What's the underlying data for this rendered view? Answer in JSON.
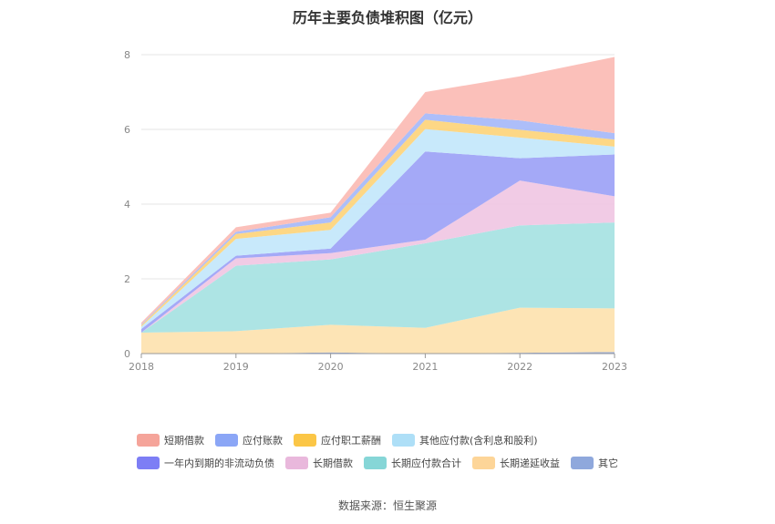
{
  "chart_data": {
    "type": "area",
    "title": "历年主要负债堆积图（亿元）",
    "categories": [
      "2018",
      "2019",
      "2020",
      "2021",
      "2022",
      "2023"
    ],
    "ylim": [
      0,
      8
    ],
    "yticks": [
      "0",
      "2",
      "4",
      "6",
      "8"
    ],
    "stacked": true,
    "grid": true,
    "legend_position": "bottom",
    "series": [
      {
        "name": "其它",
        "color": "#8fa8dc",
        "values": [
          0,
          0,
          0.03,
          0,
          0.02,
          0.04
        ]
      },
      {
        "name": "长期递延收益",
        "color": "#fde3b1",
        "values": [
          0.56,
          0.6,
          0.74,
          0.69,
          1.21,
          1.17
        ]
      },
      {
        "name": "长期应付款合计",
        "color": "#a9e3e3",
        "values": [
          0,
          1.75,
          1.75,
          2.26,
          2.2,
          2.3
        ]
      },
      {
        "name": "长期借款",
        "color": "#f0c8e4",
        "values": [
          0,
          0.2,
          0.17,
          0.1,
          1.2,
          0.7
        ]
      },
      {
        "name": "一年内到期的非流动负债",
        "color": "#9fa4f7",
        "values": [
          0.1,
          0.07,
          0.12,
          2.36,
          0.6,
          1.12
        ]
      },
      {
        "name": "其他应付款(含利息和股利)",
        "color": "#c5e8fb",
        "values": [
          0.06,
          0.45,
          0.5,
          0.6,
          0.55,
          0.21
        ]
      },
      {
        "name": "应付职工薪酬",
        "color": "#fdd57e",
        "values": [
          0.04,
          0.13,
          0.2,
          0.25,
          0.21,
          0.19
        ]
      },
      {
        "name": "应付账款",
        "color": "#a9bbf9",
        "values": [
          0.02,
          0.06,
          0.14,
          0.17,
          0.25,
          0.17
        ]
      },
      {
        "name": "短期借款",
        "color": "#fbbdb6",
        "values": [
          0.05,
          0.12,
          0.12,
          0.57,
          1.18,
          2.04
        ]
      }
    ]
  },
  "legend": {
    "row1": [
      {
        "label": "短期借款",
        "color": "#f5a49a"
      },
      {
        "label": "应付账款",
        "color": "#8ba6f6"
      },
      {
        "label": "应付职工薪酬",
        "color": "#fbc646"
      },
      {
        "label": "其他应付款(含利息和股利)",
        "color": "#aedff7"
      }
    ],
    "row2": [
      {
        "label": "一年内到期的非流动负债",
        "color": "#7d7ef5"
      },
      {
        "label": "长期借款",
        "color": "#e9b8dc"
      },
      {
        "label": "长期应付款合计",
        "color": "#86d6d7"
      },
      {
        "label": "长期递延收益",
        "color": "#fdd598"
      },
      {
        "label": "其它",
        "color": "#8fa8dc"
      }
    ]
  },
  "source": "数据来源：恒生聚源"
}
